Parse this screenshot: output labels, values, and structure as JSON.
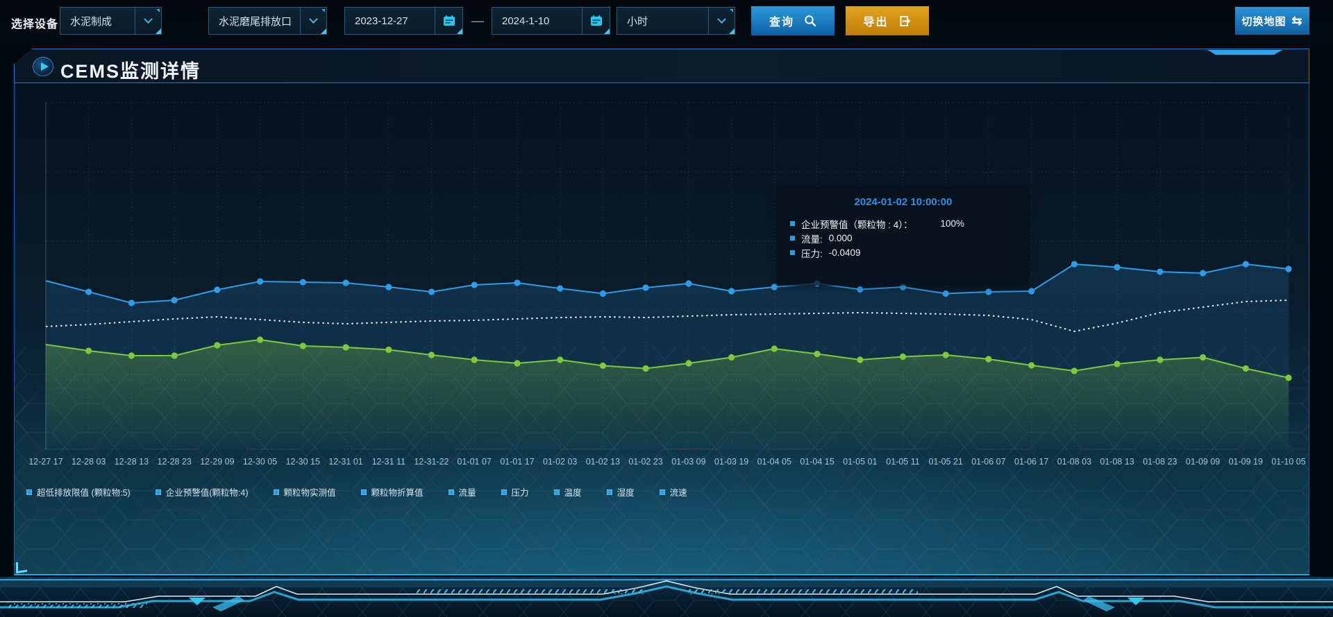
{
  "toolbar": {
    "device_label": "选择设备",
    "device_select": "水泥制成",
    "outlet_select": "水泥磨尾排放口",
    "date_start": "2023-12-27",
    "date_separator": "—",
    "date_end": "2024-1-10",
    "interval_select": "小时",
    "query_label": "查询",
    "export_label": "导出",
    "switch_map_label": "切换地图"
  },
  "icons": {
    "query_icon": "magnifier",
    "export_icon": "export-arrow-box",
    "calendar_icon": "calendar",
    "dropdown_icon": "chevron-down",
    "play_icon": "play-triangle",
    "swap_icon": "⇆"
  },
  "panel": {
    "title": "CEMS监测详情"
  },
  "tooltip": {
    "title": "2024-01-02 10:00:00",
    "items": [
      {
        "label": "企业预警值（颗粒物 : 4）：",
        "value": "100%",
        "wide_gap": true
      },
      {
        "label": "流量:",
        "value": "0.000",
        "wide_gap": false
      },
      {
        "label": "压力:",
        "value": "-0.0409",
        "wide_gap": false
      }
    ]
  },
  "legend": {
    "marker_color": "#2d9cdb",
    "items": [
      {
        "label": "超低排放限值 (颗粒物:5)"
      },
      {
        "label": "企业预警值(颗粒物:4)"
      },
      {
        "label": "颗粒物实测值"
      },
      {
        "label": "颗粒物折算值"
      },
      {
        "label": "流量"
      },
      {
        "label": "压力"
      },
      {
        "label": "温度"
      },
      {
        "label": "湿度"
      },
      {
        "label": "流速"
      }
    ]
  },
  "chart_data": {
    "type": "line",
    "title": "CEMS监测详情",
    "xlabel": "",
    "ylabel": "",
    "ylim": [
      0,
      100
    ],
    "grid": "dotted",
    "legend_position": "bottom",
    "x_labels": [
      "12-27 17",
      "12-28 03",
      "12-28 13",
      "12-28 23",
      "12-29 09",
      "12-30 05",
      "12-30 15",
      "12-31 01",
      "12-31 11",
      "12-31-22",
      "01-01 07",
      "01-01 17",
      "01-02 03",
      "01-02 13",
      "01-02 23",
      "01-03 09",
      "01-03 19",
      "01-04 05",
      "01-04 15",
      "01-05 01",
      "01-05 11",
      "01-05 21",
      "01-06 07",
      "01-06 17",
      "01-08 03",
      "01-08 13",
      "01-08 23",
      "01-09 09",
      "01-09 19",
      "01-10 05"
    ],
    "series": [
      {
        "name": "企业预警值(颗粒物:4)",
        "color": "#2f9ce8",
        "line_style": "solid",
        "markers": true,
        "area_fill": true,
        "values": [
          48.6,
          45.4,
          42.2,
          43.0,
          46.0,
          48.4,
          48.2,
          48.0,
          46.8,
          45.4,
          47.4,
          48.0,
          46.4,
          44.9,
          46.6,
          47.8,
          45.6,
          46.8,
          47.8,
          46.1,
          46.8,
          44.9,
          45.4,
          45.6,
          53.4,
          52.5,
          51.2,
          50.8,
          53.4,
          52.0
        ]
      },
      {
        "name": "超低排放限值 (颗粒物:5)",
        "color": "#e9f3f9",
        "line_style": "dotted",
        "markers": false,
        "area_fill": false,
        "values": [
          35.4,
          36.0,
          36.8,
          37.6,
          38.2,
          37.4,
          36.6,
          36.2,
          36.6,
          37.0,
          37.2,
          37.6,
          38.0,
          38.2,
          38.0,
          38.4,
          38.8,
          39.0,
          39.2,
          39.4,
          39.2,
          39.0,
          38.6,
          37.4,
          34.0,
          36.4,
          39.4,
          41.0,
          42.6,
          43.0
        ]
      },
      {
        "name": "颗粒物实测值",
        "color": "#7ec93e",
        "line_style": "solid",
        "markers": true,
        "area_fill": true,
        "values": [
          30.2,
          28.4,
          27.0,
          27.0,
          30.0,
          31.6,
          29.8,
          29.4,
          28.7,
          27.2,
          25.8,
          24.8,
          25.8,
          24.1,
          23.3,
          24.8,
          26.5,
          29.0,
          27.5,
          25.8,
          26.7,
          27.2,
          26.0,
          24.2,
          22.6,
          24.6,
          25.8,
          26.5,
          23.3,
          20.6
        ]
      }
    ]
  }
}
